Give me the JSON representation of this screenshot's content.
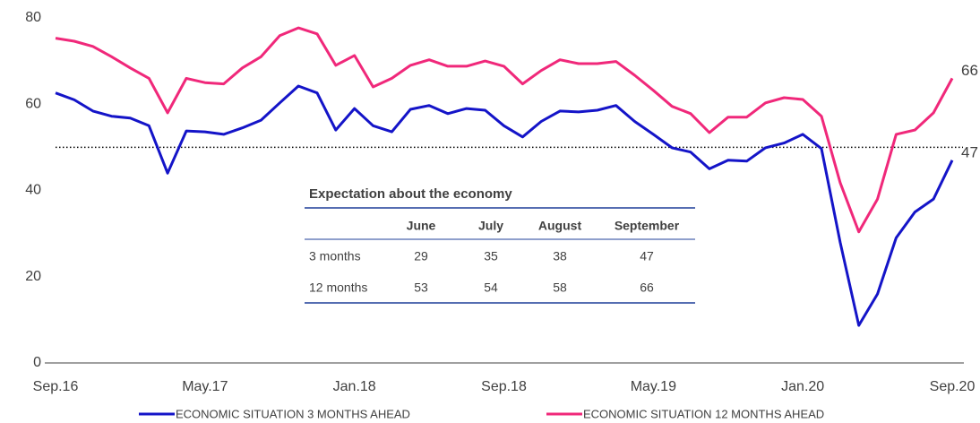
{
  "chart_data": {
    "type": "line",
    "categories": [
      "Sep.16",
      null,
      null,
      null,
      null,
      null,
      null,
      null,
      "May.17",
      null,
      null,
      null,
      null,
      null,
      null,
      null,
      "Jan.18",
      null,
      null,
      null,
      null,
      null,
      null,
      null,
      "Sep.18",
      null,
      null,
      null,
      null,
      null,
      null,
      null,
      "May.19",
      null,
      null,
      null,
      null,
      null,
      null,
      null,
      "Jan.20",
      null,
      null,
      null,
      null,
      null,
      null,
      null,
      "Sep.20"
    ],
    "series": [
      {
        "name": "ECONOMIC SITUATION 3 MONTHS AHEAD",
        "color": "#1414c8",
        "values": [
          62.6,
          61,
          58.4,
          57.2,
          56.8,
          55,
          44,
          53.8,
          53.6,
          53,
          54.5,
          56.3,
          60.3,
          64.2,
          62.6,
          54,
          59,
          55,
          53.6,
          58.8,
          59.7,
          57.8,
          59,
          58.6,
          55,
          52.4,
          56,
          58.4,
          58.2,
          58.6,
          59.7,
          56,
          53,
          49.9,
          48.9,
          45,
          47,
          46.8,
          49.9,
          51,
          53,
          49.7,
          28,
          8.7,
          16,
          29,
          35,
          38,
          47
        ]
      },
      {
        "name": "ECONOMIC SITUATION 12 MONTHS AHEAD",
        "color": "#f0287a",
        "values": [
          75.3,
          74.6,
          73.4,
          71,
          68.4,
          66,
          58,
          66,
          65,
          64.7,
          68.4,
          71,
          75.9,
          77.7,
          76.3,
          69,
          71.3,
          64,
          66,
          69,
          70.3,
          68.8,
          68.8,
          70,
          68.8,
          64.7,
          67.8,
          70.3,
          69.4,
          69.4,
          69.9,
          66.7,
          63.2,
          59.5,
          57.8,
          53.4,
          57,
          57,
          60.3,
          61.5,
          61.1,
          57.2,
          41.8,
          30.4,
          38,
          53,
          54,
          58,
          66
        ]
      }
    ],
    "ylim": [
      0,
      80
    ],
    "yticks": [
      0,
      20,
      40,
      60,
      80
    ],
    "grid": false,
    "reference_line": 50,
    "legend": "bottom"
  },
  "table": {
    "title": "Expectation about the economy",
    "columns": [
      "June",
      "July",
      "August",
      "September"
    ],
    "rows": [
      {
        "label": "3 months",
        "values": [
          29,
          35,
          38,
          47
        ]
      },
      {
        "label": "12 months",
        "values": [
          53,
          54,
          58,
          66
        ]
      }
    ]
  }
}
